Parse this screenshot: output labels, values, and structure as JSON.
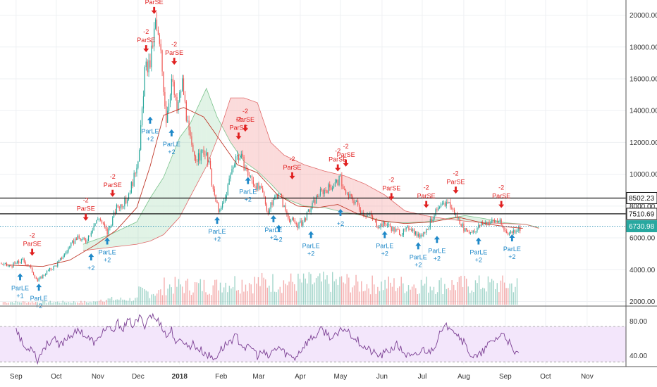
{
  "chart_data": [
    {
      "type": "candlestick",
      "title": "",
      "ylim": [
        1800,
        20600
      ],
      "y_ticks": [
        "20000.00",
        "18000.00",
        "16000.00",
        "14000.00",
        "12000.00",
        "10000.00",
        "8000.00",
        "6000.00",
        "4000.00",
        "2000.00"
      ],
      "y_tick_values": [
        20000,
        18000,
        16000,
        14000,
        12000,
        10000,
        8000,
        6000,
        4000,
        2000
      ],
      "x_ticks": [
        "Sep",
        "Oct",
        "Nov",
        "Dec",
        "2018",
        "Feb",
        "Mar",
        "Apr",
        "May",
        "Jun",
        "Jul",
        "Aug",
        "Sep",
        "Oct",
        "Nov"
      ],
      "x_tick_days": [
        0,
        30,
        61,
        91,
        122,
        153,
        181,
        212,
        242,
        273,
        303,
        334,
        365,
        395,
        426
      ],
      "x_range_days": [
        -12,
        455
      ],
      "price_path": [
        [
          -12,
          4400
        ],
        [
          -5,
          4200
        ],
        [
          5,
          4600
        ],
        [
          10,
          4200
        ],
        [
          16,
          3300
        ],
        [
          22,
          3800
        ],
        [
          30,
          4300
        ],
        [
          38,
          5200
        ],
        [
          45,
          6000
        ],
        [
          52,
          5800
        ],
        [
          58,
          6800
        ],
        [
          62,
          7300
        ],
        [
          68,
          6300
        ],
        [
          75,
          7900
        ],
        [
          82,
          8300
        ],
        [
          88,
          9800
        ],
        [
          92,
          11500
        ],
        [
          96,
          16500
        ],
        [
          100,
          17000
        ],
        [
          104,
          19500
        ],
        [
          108,
          17500
        ],
        [
          112,
          13500
        ],
        [
          116,
          16000
        ],
        [
          120,
          14000
        ],
        [
          124,
          15800
        ],
        [
          128,
          13000
        ],
        [
          132,
          11200
        ],
        [
          136,
          11000
        ],
        [
          140,
          11500
        ],
        [
          144,
          10600
        ],
        [
          148,
          8500
        ],
        [
          152,
          7600
        ],
        [
          156,
          8500
        ],
        [
          160,
          10000
        ],
        [
          164,
          11200
        ],
        [
          168,
          11000
        ],
        [
          172,
          10200
        ],
        [
          176,
          9600
        ],
        [
          180,
          9200
        ],
        [
          184,
          8800
        ],
        [
          188,
          7600
        ],
        [
          192,
          8400
        ],
        [
          196,
          8900
        ],
        [
          200,
          7900
        ],
        [
          204,
          7200
        ],
        [
          210,
          6800
        ],
        [
          214,
          7000
        ],
        [
          218,
          7600
        ],
        [
          222,
          8200
        ],
        [
          226,
          8800
        ],
        [
          232,
          9100
        ],
        [
          238,
          9400
        ],
        [
          242,
          9700
        ],
        [
          246,
          8700
        ],
        [
          250,
          8500
        ],
        [
          254,
          8200
        ],
        [
          258,
          7600
        ],
        [
          264,
          7400
        ],
        [
          270,
          6800
        ],
        [
          276,
          6900
        ],
        [
          282,
          6500
        ],
        [
          288,
          6300
        ],
        [
          294,
          6700
        ],
        [
          300,
          6100
        ],
        [
          306,
          6500
        ],
        [
          312,
          7500
        ],
        [
          318,
          8000
        ],
        [
          322,
          8300
        ],
        [
          326,
          7700
        ],
        [
          330,
          7200
        ],
        [
          336,
          6300
        ],
        [
          342,
          6500
        ],
        [
          348,
          6900
        ],
        [
          354,
          7000
        ],
        [
          360,
          7100
        ],
        [
          364,
          6500
        ],
        [
          368,
          6300
        ],
        [
          372,
          6500
        ],
        [
          378,
          6700
        ]
      ],
      "indicator": {
        "name": "Ichimoku Cloud",
        "kijun_path": [
          [
            -8,
            4300
          ],
          [
            20,
            4200
          ],
          [
            40,
            4600
          ],
          [
            60,
            5600
          ],
          [
            75,
            6500
          ],
          [
            90,
            7900
          ],
          [
            100,
            10500
          ],
          [
            110,
            13700
          ],
          [
            125,
            14200
          ],
          [
            140,
            13600
          ],
          [
            150,
            12400
          ],
          [
            165,
            10600
          ],
          [
            180,
            10100
          ],
          [
            195,
            8700
          ],
          [
            210,
            8000
          ],
          [
            225,
            7900
          ],
          [
            240,
            8100
          ],
          [
            255,
            7500
          ],
          [
            270,
            7100
          ],
          [
            290,
            6900
          ],
          [
            310,
            7000
          ],
          [
            330,
            7300
          ],
          [
            350,
            6900
          ],
          [
            365,
            6700
          ],
          [
            378,
            6600
          ]
        ],
        "span_a_path": [
          [
            50,
            5600
          ],
          [
            70,
            6200
          ],
          [
            90,
            7000
          ],
          [
            100,
            8500
          ],
          [
            110,
            9800
          ],
          [
            122,
            12300
          ],
          [
            130,
            13200
          ],
          [
            142,
            15400
          ],
          [
            150,
            13600
          ],
          [
            160,
            12000
          ],
          [
            170,
            10800
          ],
          [
            180,
            10200
          ],
          [
            190,
            9400
          ],
          [
            200,
            8500
          ],
          [
            215,
            8000
          ],
          [
            230,
            7900
          ],
          [
            245,
            7600
          ],
          [
            260,
            7400
          ],
          [
            275,
            7000
          ],
          [
            290,
            6950
          ],
          [
            305,
            7000
          ],
          [
            320,
            7200
          ],
          [
            335,
            7400
          ],
          [
            350,
            7200
          ],
          [
            365,
            6950
          ],
          [
            380,
            6850
          ],
          [
            390,
            6650
          ]
        ],
        "span_b_path": [
          [
            50,
            5200
          ],
          [
            70,
            5400
          ],
          [
            90,
            5600
          ],
          [
            100,
            5800
          ],
          [
            110,
            6200
          ],
          [
            122,
            7300
          ],
          [
            130,
            8600
          ],
          [
            142,
            10500
          ],
          [
            150,
            12200
          ],
          [
            160,
            14800
          ],
          [
            170,
            14800
          ],
          [
            180,
            14500
          ],
          [
            190,
            12000
          ],
          [
            200,
            11200
          ],
          [
            215,
            10600
          ],
          [
            230,
            10200
          ],
          [
            245,
            9900
          ],
          [
            260,
            9400
          ],
          [
            275,
            8700
          ],
          [
            290,
            7700
          ],
          [
            305,
            7400
          ],
          [
            320,
            7200
          ],
          [
            335,
            7050
          ],
          [
            350,
            6950
          ],
          [
            365,
            6900
          ],
          [
            380,
            6850
          ],
          [
            390,
            6600
          ]
        ]
      },
      "horizontal_levels": [
        8502.23,
        7510.69,
        6730.98
      ],
      "price_badges": [
        "8502.23",
        "7510.69",
        "6730.98"
      ],
      "signals": [
        {
          "day": 3,
          "dir": "up",
          "label": "ParLE",
          "qty": "+1",
          "price": 3950
        },
        {
          "day": 12,
          "dir": "down",
          "label": "ParSE",
          "qty": "-2",
          "price": 4700
        },
        {
          "day": 17,
          "dir": "up",
          "label": "ParLE",
          "qty": "+2",
          "price": 3300
        },
        {
          "day": 52,
          "dir": "down",
          "label": "ParSE",
          "qty": "-2",
          "price": 6900
        },
        {
          "day": 56,
          "dir": "up",
          "label": "",
          "qty": "+2",
          "price": 5200
        },
        {
          "day": 68,
          "dir": "up",
          "label": "ParLE",
          "qty": "+2",
          "price": 6200
        },
        {
          "day": 72,
          "dir": "down",
          "label": "ParSE",
          "qty": "-2",
          "price": 8400
        },
        {
          "day": 103,
          "dir": "down",
          "label": "ParSE",
          "qty": "-2",
          "price": 19900
        },
        {
          "day": 97,
          "dir": "down",
          "label": "ParSE",
          "qty": "-2",
          "price": 17500
        },
        {
          "day": 100,
          "dir": "up",
          "label": "ParLE",
          "qty": "+2",
          "price": 13800
        },
        {
          "day": 116,
          "dir": "up",
          "label": "ParLE",
          "qty": "+2",
          "price": 13000
        },
        {
          "day": 118,
          "dir": "down",
          "label": "ParSE",
          "qty": "-2",
          "price": 16700
        },
        {
          "day": 150,
          "dir": "up",
          "label": "ParLE",
          "qty": "+2",
          "price": 7500
        },
        {
          "day": 166,
          "dir": "down",
          "label": "ParSE",
          "qty": "-2",
          "price": 12000
        },
        {
          "day": 171,
          "dir": "down",
          "label": "ParSE",
          "qty": "-2",
          "price": 12500
        },
        {
          "day": 173,
          "dir": "up",
          "label": "ParLE",
          "qty": "+2",
          "price": 10000
        },
        {
          "day": 192,
          "dir": "up",
          "label": "ParLE",
          "qty": "+2",
          "price": 7600
        },
        {
          "day": 196,
          "dir": "up",
          "label": "",
          "qty": "+2",
          "price": 7000
        },
        {
          "day": 206,
          "dir": "down",
          "label": "ParSE",
          "qty": "-2",
          "price": 9500
        },
        {
          "day": 220,
          "dir": "up",
          "label": "ParLE",
          "qty": "+2",
          "price": 6600
        },
        {
          "day": 240,
          "dir": "down",
          "label": "ParSE",
          "qty": "-2",
          "price": 10000
        },
        {
          "day": 246,
          "dir": "down",
          "label": "ParSE",
          "qty": "-2",
          "price": 10300
        },
        {
          "day": 242,
          "dir": "up",
          "label": "",
          "qty": "+2",
          "price": 8000
        },
        {
          "day": 275,
          "dir": "up",
          "label": "ParLE",
          "qty": "+2",
          "price": 6600
        },
        {
          "day": 280,
          "dir": "down",
          "label": "ParSE",
          "qty": "-2",
          "price": 8200
        },
        {
          "day": 300,
          "dir": "up",
          "label": "ParLE",
          "qty": "+2",
          "price": 5900
        },
        {
          "day": 306,
          "dir": "down",
          "label": "ParSE",
          "qty": "-2",
          "price": 7700
        },
        {
          "day": 314,
          "dir": "up",
          "label": "ParLE",
          "qty": "+2",
          "price": 6300
        },
        {
          "day": 328,
          "dir": "down",
          "label": "ParSE",
          "qty": "-2",
          "price": 8600
        },
        {
          "day": 345,
          "dir": "up",
          "label": "ParLE",
          "qty": "+2",
          "price": 6200
        },
        {
          "day": 362,
          "dir": "down",
          "label": "ParSE",
          "qty": "-2",
          "price": 7700
        },
        {
          "day": 370,
          "dir": "up",
          "label": "ParLE",
          "qty": "+2",
          "price": 6400
        }
      ]
    },
    {
      "type": "line",
      "title": "",
      "series": [
        {
          "x": [
            0,
            4,
            8,
            12,
            16,
            20,
            24,
            28,
            32,
            36,
            40,
            44,
            48,
            52,
            56,
            60,
            64,
            68,
            72,
            76,
            80,
            84,
            88,
            92,
            96,
            100,
            104,
            108,
            112,
            116,
            120,
            124,
            128,
            132,
            136,
            140,
            144,
            148,
            152,
            156,
            160,
            164,
            168,
            172,
            176,
            180,
            184,
            188,
            192,
            196,
            200,
            204,
            208,
            212,
            216,
            220,
            224,
            228,
            232,
            236,
            240,
            244,
            248,
            252,
            256,
            260,
            264,
            268,
            272,
            276,
            280,
            284,
            288,
            292,
            296,
            300,
            304,
            308,
            312,
            316,
            320,
            324,
            328,
            332,
            336,
            340,
            344,
            348,
            352,
            356,
            360,
            364,
            368,
            372,
            376
          ],
          "values": [
            74,
            56,
            46,
            52,
            34,
            48,
            55,
            60,
            50,
            58,
            64,
            66,
            70,
            62,
            58,
            54,
            68,
            72,
            66,
            78,
            72,
            80,
            75,
            84,
            76,
            88,
            82,
            78,
            62,
            70,
            52,
            60,
            50,
            54,
            48,
            44,
            40,
            36,
            46,
            52,
            58,
            62,
            54,
            48,
            50,
            40,
            44,
            38,
            46,
            50,
            44,
            40,
            38,
            46,
            54,
            60,
            64,
            70,
            66,
            60,
            64,
            72,
            68,
            62,
            56,
            50,
            46,
            42,
            40,
            44,
            48,
            52,
            46,
            40,
            38,
            42,
            48,
            44,
            52,
            64,
            72,
            76,
            68,
            60,
            50,
            40,
            38,
            44,
            52,
            58,
            62,
            66,
            54,
            40,
            48
          ]
        }
      ],
      "ylim": [
        30,
        95
      ],
      "y_ticks": [
        "80.00",
        "40.00"
      ],
      "y_tick_values": [
        80,
        40
      ],
      "band": [
        33,
        74
      ]
    }
  ]
}
